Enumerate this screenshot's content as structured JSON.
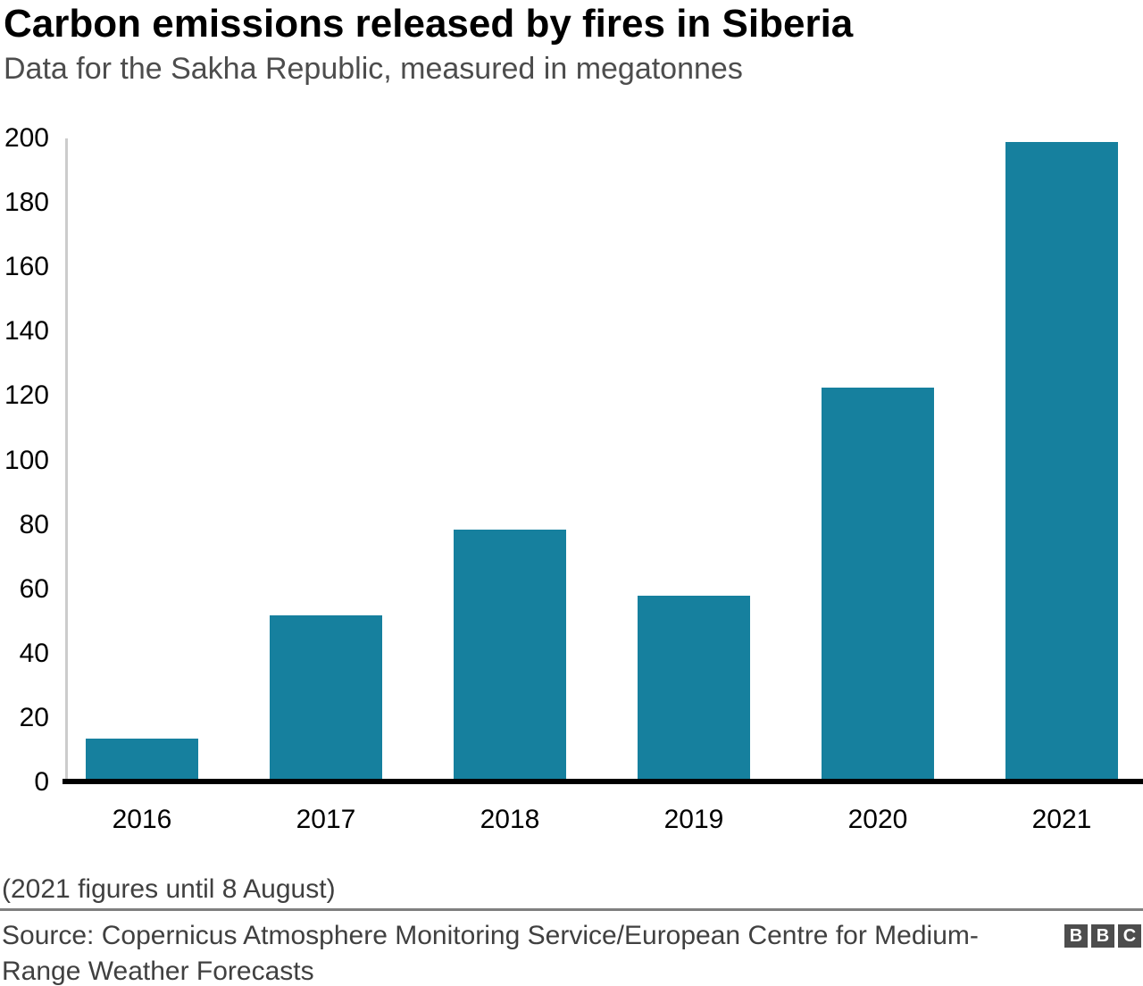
{
  "header": {
    "title": "Carbon emissions released by fires in Siberia",
    "subtitle": "Data for the Sakha Republic, measured in megatonnes"
  },
  "footnote": "(2021 figures until 8 August)",
  "source": {
    "lines": [
      "Source: Copernicus Atmosphere Monitoring Service/European Centre for Medium-",
      "Range Weather Forecasts"
    ]
  },
  "logo": {
    "letters": [
      "B",
      "B",
      "C"
    ]
  },
  "colors": {
    "bar": "#16809E",
    "x_axis": "#000000",
    "y_axis_line": "#cccccc",
    "divider": "#7f7f7f"
  },
  "chart_data": {
    "type": "bar",
    "title": "Carbon emissions released by fires in Siberia",
    "subtitle": "Data for the Sakha Republic, measured in megatonnes",
    "categories": [
      "2016",
      "2017",
      "2018",
      "2019",
      "2020",
      "2021"
    ],
    "values": [
      13.5,
      52,
      78.5,
      58,
      122.5,
      199
    ],
    "unit": "megatonnes",
    "xlabel": "",
    "ylabel": "",
    "ylim": [
      0,
      200
    ],
    "yticks": [
      0,
      20,
      40,
      60,
      80,
      100,
      120,
      140,
      160,
      180,
      200
    ],
    "grid": false,
    "legend": false,
    "note": "(2021 figures until 8 August)"
  }
}
